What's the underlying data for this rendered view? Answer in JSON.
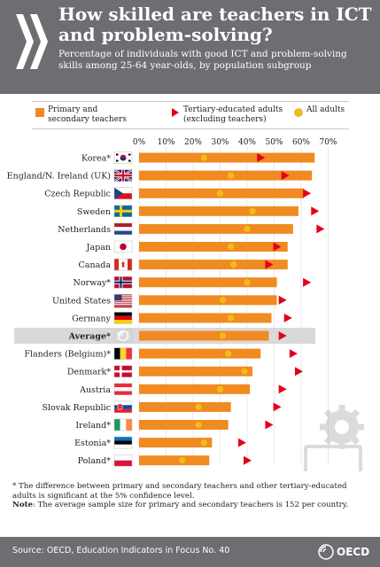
{
  "header": {
    "title": "How skilled are teachers in ICT and problem-solving?",
    "subtitle": "Percentage of individuals with good ICT and problem-solving skills among 25-64 year-olds, by population subgroup"
  },
  "legend": {
    "teachers": "Primary and secondary teachers",
    "tertiary": "Tertiary-educated adults (excluding teachers)",
    "all": "All adults"
  },
  "colors": {
    "bar": "#f18a21",
    "tertiary": "#e3001b",
    "all": "#f8b81c",
    "header_bg": "#6d6e71",
    "average_band": "#d9d9d9"
  },
  "chart_data": {
    "type": "bar",
    "orientation": "horizontal",
    "xlim": [
      0,
      70
    ],
    "ticks": [
      "0%",
      "10%",
      "20%",
      "30%",
      "40%",
      "50%",
      "60%",
      "70%"
    ],
    "legend_position": "top",
    "categories": [
      "Korea*",
      "England/N. Ireland (UK)",
      "Czech Republic",
      "Sweden",
      "Netherlands",
      "Japan",
      "Canada",
      "Norway*",
      "United States",
      "Germany",
      "Average*",
      "Flanders (Belgium)*",
      "Denmark*",
      "Austria",
      "Slovak Republic",
      "Ireland*",
      "Estonia*",
      "Poland*"
    ],
    "series": [
      {
        "name": "Primary and secondary teachers",
        "marker": "bar",
        "values": [
          65,
          64,
          61,
          59,
          57,
          55,
          55,
          51,
          51,
          49,
          48,
          45,
          42,
          41,
          34,
          33,
          27,
          26
        ]
      },
      {
        "name": "Tertiary-educated adults (excluding teachers)",
        "marker": "triangle",
        "values": [
          45,
          54,
          62,
          65,
          67,
          51,
          48,
          62,
          53,
          55,
          53,
          57,
          59,
          53,
          51,
          48,
          38,
          40
        ]
      },
      {
        "name": "All adults",
        "marker": "circle",
        "values": [
          24,
          34,
          30,
          42,
          40,
          34,
          35,
          40,
          31,
          34,
          31,
          33,
          39,
          30,
          22,
          22,
          24,
          16
        ]
      }
    ],
    "flags": [
      "korea",
      "uk",
      "czech",
      "sweden",
      "netherlands",
      "japan",
      "canada",
      "norway",
      "usa",
      "germany",
      "oecd",
      "belgium",
      "denmark",
      "austria",
      "slovakia",
      "ireland",
      "estonia",
      "poland"
    ]
  },
  "footnote": {
    "star_note": "* The difference between primary and secondary teachers and other tertiary-educated adults is significant at the 5% confidence level.",
    "note_label": "Note",
    "note_text": ": The average sample size for primary and secondary teachers is 152 per country."
  },
  "footer": {
    "source": "Source: OECD, Education Indicators in Focus No. 40",
    "logo_text": "OECD"
  }
}
